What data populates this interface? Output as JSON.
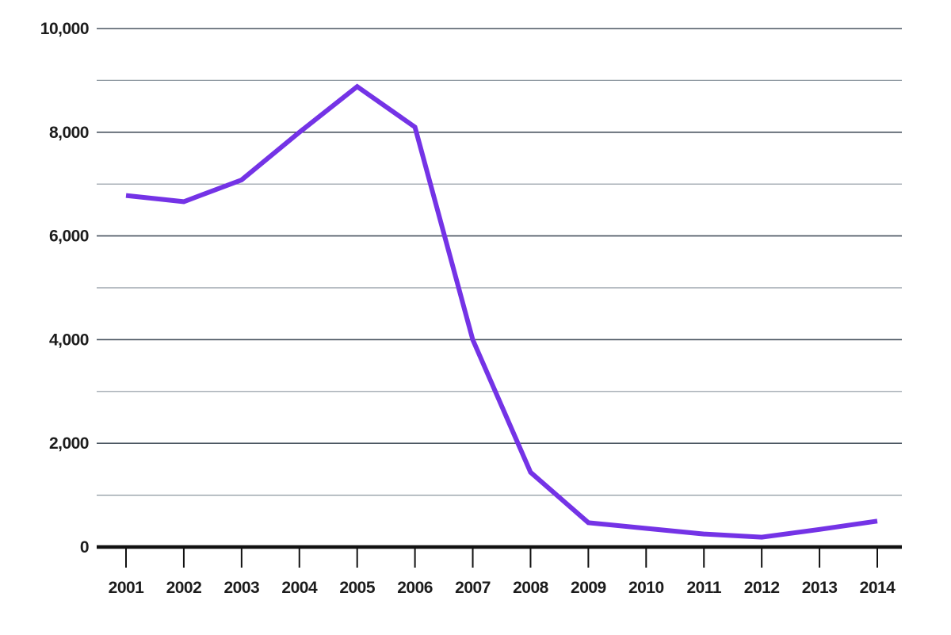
{
  "chart_data": {
    "type": "line",
    "title": "",
    "xlabel": "",
    "ylabel": "",
    "x": [
      "2001",
      "2002",
      "2003",
      "2004",
      "2005",
      "2006",
      "2007",
      "2008",
      "2009",
      "2010",
      "2011",
      "2012",
      "2013",
      "2014"
    ],
    "series": [
      {
        "values": [
          6780,
          6660,
          7080,
          8000,
          8880,
          8100,
          4000,
          1440,
          470,
          360,
          250,
          190,
          340,
          500
        ]
      }
    ],
    "ylim": [
      0,
      10000
    ],
    "y_ticks": [
      "0",
      "2,000",
      "4,000",
      "6,000",
      "8,000",
      "10,000"
    ],
    "y_tick_values": [
      0,
      2000,
      4000,
      6000,
      8000,
      10000
    ],
    "minor_gridlines": true,
    "grid": true,
    "legend": "none",
    "colors": {
      "line": "#7433e6",
      "major_grid": "#4a5560",
      "minor_grid": "#8d97a0",
      "axis": "#111111",
      "text": "#1c1c1c"
    }
  }
}
